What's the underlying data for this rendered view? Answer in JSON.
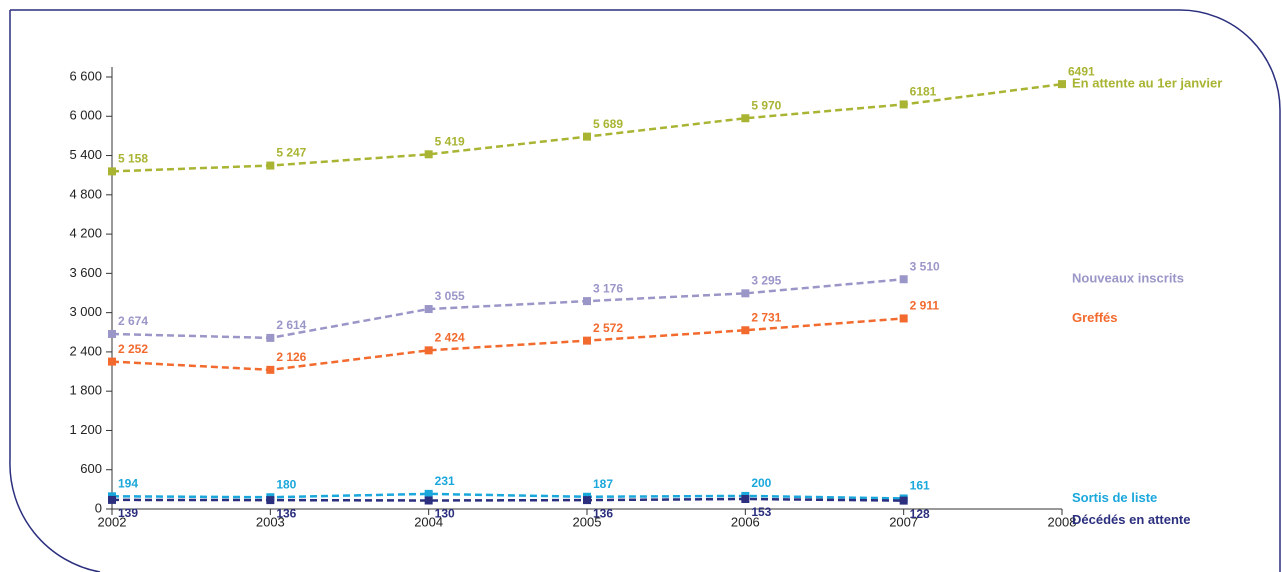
{
  "chart_data": {
    "type": "line",
    "x": [
      2002,
      2003,
      2004,
      2005,
      2006,
      2007,
      2008
    ],
    "xlim": [
      2002,
      2008
    ],
    "xticks": [
      2002,
      2003,
      2004,
      2005,
      2006,
      2007,
      2008
    ],
    "ylim": [
      0,
      6600
    ],
    "yticks": [
      0,
      600,
      {
        "value": 1200,
        "label": "1 200"
      },
      {
        "value": 1800,
        "label": "1 800"
      },
      {
        "value": 2400,
        "label": "2 400"
      },
      {
        "value": 3000,
        "label": "3 000"
      },
      {
        "value": 3600,
        "label": "3 600"
      },
      {
        "value": 4200,
        "label": "4 200"
      },
      {
        "value": 4800,
        "label": "4 800"
      },
      {
        "value": 5400,
        "label": "5 400"
      },
      {
        "value": 6000,
        "label": "6 000"
      },
      {
        "value": 6600,
        "label": "6 600"
      }
    ],
    "series": [
      {
        "name": "En attente au 1er janvier",
        "color": "#a8b432",
        "values": [
          5158,
          5247,
          5419,
          5689,
          5970,
          6181,
          6491
        ],
        "value_labels": [
          "5 158",
          "5 247",
          "5 419",
          "5 689",
          "5 970",
          "6181",
          "6491"
        ]
      },
      {
        "name": "Nouveaux inscrits",
        "color": "#9b96c8",
        "values": [
          2674,
          2614,
          3055,
          3176,
          3295,
          3510,
          null
        ],
        "value_labels": [
          "2 674",
          "2 614",
          "3 055",
          "3 176",
          "3 295",
          "3 510",
          null
        ]
      },
      {
        "name": "Greffés",
        "color": "#f26a2e",
        "values": [
          2252,
          2126,
          2424,
          2572,
          2731,
          2911,
          null
        ],
        "value_labels": [
          "2 252",
          "2 126",
          "2 424",
          "2 572",
          "2 731",
          "2 911",
          null
        ]
      },
      {
        "name": "Sortis de liste",
        "color": "#1aa7dc",
        "values": [
          194,
          180,
          231,
          187,
          200,
          161,
          null
        ]
      },
      {
        "name": "Décédés en attente",
        "color": "#2b2f7e",
        "values": [
          139,
          136,
          130,
          136,
          153,
          128,
          null
        ]
      }
    ]
  }
}
